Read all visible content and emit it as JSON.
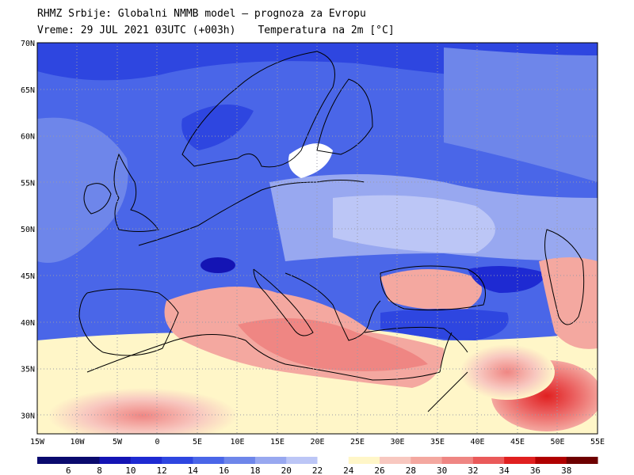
{
  "header": {
    "line1": "RHMZ Srbije: Globalni NMMB model — prognoza za Evropu",
    "valid_time": "Vreme: 29 JUL 2021 03UTC (+003h)",
    "variable": "Temperatura na 2m [°C]"
  },
  "map": {
    "lat_labels": [
      "70N",
      "65N",
      "60N",
      "55N",
      "50N",
      "45N",
      "40N",
      "35N",
      "30N"
    ],
    "lon_labels": [
      "15W",
      "10W",
      "5W",
      "0",
      "5E",
      "10E",
      "15E",
      "20E",
      "25E",
      "30E",
      "35E",
      "40E",
      "45E",
      "50E",
      "55E"
    ],
    "extent": {
      "lon_min": -15,
      "lon_max": 55,
      "lat_min": 28,
      "lat_max": 70
    }
  },
  "colorbar": {
    "labels": [
      "6",
      "8",
      "10",
      "12",
      "14",
      "16",
      "18",
      "20",
      "22",
      "24",
      "26",
      "28",
      "30",
      "32",
      "34",
      "36",
      "38"
    ],
    "colors": [
      "#0a0a6e",
      "#1414b4",
      "#1e2ad2",
      "#2e46e0",
      "#4a66e8",
      "#6e86ea",
      "#98a8f0",
      "#bcc6f6",
      "#ffffff",
      "#fff6c8",
      "#f8c8c0",
      "#f4a8a0",
      "#ef8683",
      "#ea5a5a",
      "#e02020",
      "#b00000",
      "#6e0000"
    ]
  }
}
